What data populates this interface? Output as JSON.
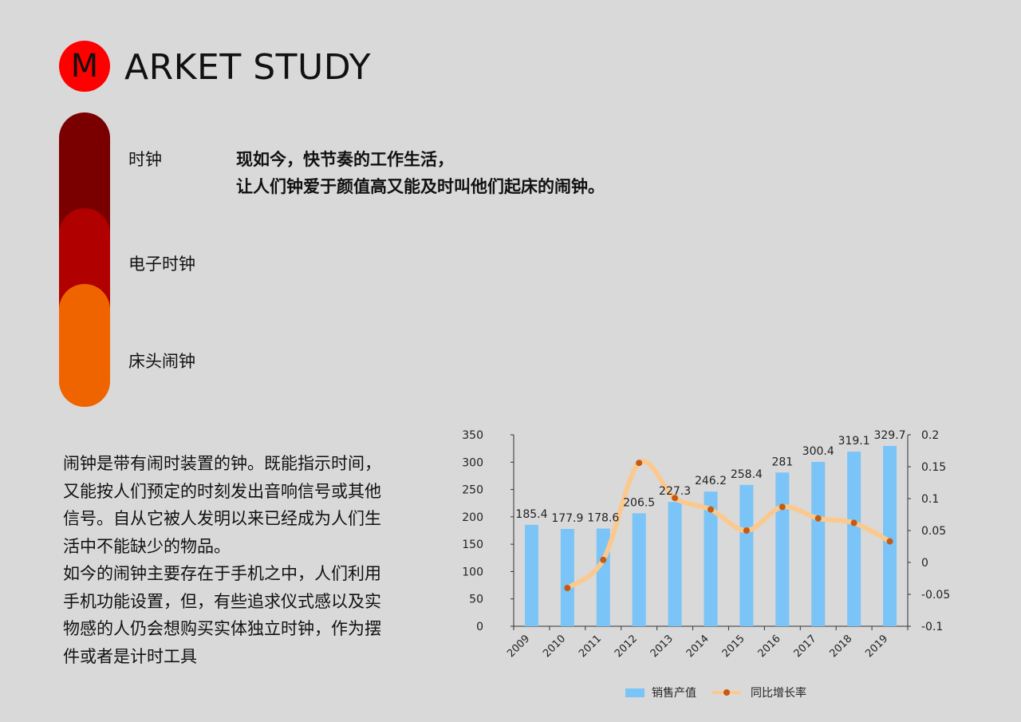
{
  "brand": {
    "letter": "M",
    "title": "ARKET STUDY",
    "logo_color": "#ff0000"
  },
  "categories": [
    {
      "label": "时钟",
      "color": "#7a0000"
    },
    {
      "label": "电子时钟",
      "color": "#b00000"
    },
    {
      "label": "床头闹钟",
      "color": "#f06400"
    }
  ],
  "headline": {
    "line1": "现如今，快节奏的工作生活，",
    "line2": "让人们钟爱于颜值高又能及时叫他们起床的闹钟。"
  },
  "description": {
    "para1": "闹钟是带有闹时装置的钟。既能指示时间，又能按人们预定的时刻发出音响信号或其他信号。自从它被人发明以来已经成为人们生活中不能缺少的物品。",
    "para2": "如今的闹钟主要存在于手机之中，人们利用手机功能设置，但，有些追求仪式感以及实物感的人仍会想购买实体独立时钟，作为摆件或者是计时工具"
  },
  "chart_data": {
    "type": "bar",
    "categories": [
      "2009",
      "2010",
      "2011",
      "2012",
      "2013",
      "2014",
      "2015",
      "2016",
      "2017",
      "2018",
      "2019"
    ],
    "series": [
      {
        "name": "销售产值",
        "type": "bar",
        "axis": "left",
        "color": "#7bc4f7",
        "values": [
          185.4,
          177.9,
          178.6,
          206.5,
          227.3,
          246.2,
          258.4,
          281,
          300.4,
          319.1,
          329.7
        ]
      },
      {
        "name": "同比增长率",
        "type": "line",
        "axis": "right",
        "smooth": true,
        "color": "#fbc98e",
        "marker_color": "#c55a11",
        "values": [
          null,
          -0.04,
          0.004,
          0.156,
          0.101,
          0.083,
          0.05,
          0.087,
          0.069,
          0.062,
          0.033
        ]
      }
    ],
    "y_left": {
      "min": 0,
      "max": 350,
      "ticks": [
        "0",
        "50",
        "100",
        "150",
        "200",
        "250",
        "300",
        "350"
      ]
    },
    "y_right": {
      "min": -0.1,
      "max": 0.2,
      "ticks": [
        "-0.1",
        "-0.05",
        "0",
        "0.05",
        "0.1",
        "0.15",
        "0.2"
      ]
    },
    "data_labels": true,
    "grid": false,
    "legend": "bottom"
  }
}
